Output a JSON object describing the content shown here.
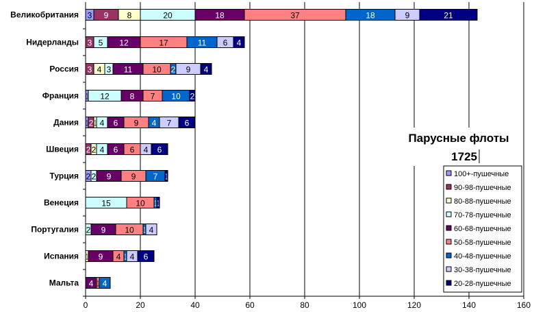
{
  "chart_data": {
    "type": "bar",
    "orientation": "horizontal",
    "stacked": true,
    "title": "Парусные флоты",
    "subtitle": "1725",
    "xlim": [
      0,
      160
    ],
    "xticks": [
      0,
      20,
      40,
      60,
      80,
      100,
      120,
      140,
      160
    ],
    "grid": "vertical major gridlines",
    "legend_position": "right",
    "categories": [
      "Великобритания",
      "Нидерланды",
      "Россия",
      "Франция",
      "Дания",
      "Швеция",
      "Турция",
      "Венеция",
      "Португалия",
      "Испания",
      "Мальта"
    ],
    "series": [
      {
        "name": "100+-пушечные",
        "color": "#9999ff",
        "values": [
          3,
          0,
          0,
          1,
          1,
          0,
          2,
          0,
          0,
          0,
          0
        ]
      },
      {
        "name": "90-98-пушечные",
        "color": "#993366",
        "values": [
          9,
          3,
          3,
          0,
          2,
          2,
          0,
          0,
          0,
          0,
          0
        ]
      },
      {
        "name": "80-88-пушечные",
        "color": "#ffffcc",
        "values": [
          8,
          0,
          4,
          0,
          1,
          2,
          0,
          0,
          0,
          1,
          0
        ]
      },
      {
        "name": "70-78-пушечные",
        "color": "#ccffff",
        "values": [
          20,
          5,
          3,
          12,
          4,
          4,
          2,
          15,
          2,
          0,
          0
        ]
      },
      {
        "name": "60-68-пушечные",
        "color": "#660066",
        "values": [
          18,
          12,
          11,
          8,
          6,
          6,
          9,
          0,
          9,
          9,
          4
        ]
      },
      {
        "name": "50-58-пушечные",
        "color": "#ff8080",
        "values": [
          37,
          17,
          10,
          7,
          9,
          6,
          9,
          10,
          10,
          4,
          1
        ]
      },
      {
        "name": "40-48-пушечные",
        "color": "#0066cc",
        "values": [
          18,
          11,
          2,
          10,
          4,
          0,
          7,
          1,
          1,
          1,
          4
        ]
      },
      {
        "name": "30-38-пушечные",
        "color": "#ccccff",
        "values": [
          9,
          6,
          9,
          0,
          7,
          4,
          0,
          0,
          4,
          4,
          0
        ]
      },
      {
        "name": "20-28-пушечные",
        "color": "#000080",
        "values": [
          21,
          4,
          4,
          2,
          6,
          6,
          1,
          1,
          0,
          6,
          0
        ]
      }
    ]
  }
}
